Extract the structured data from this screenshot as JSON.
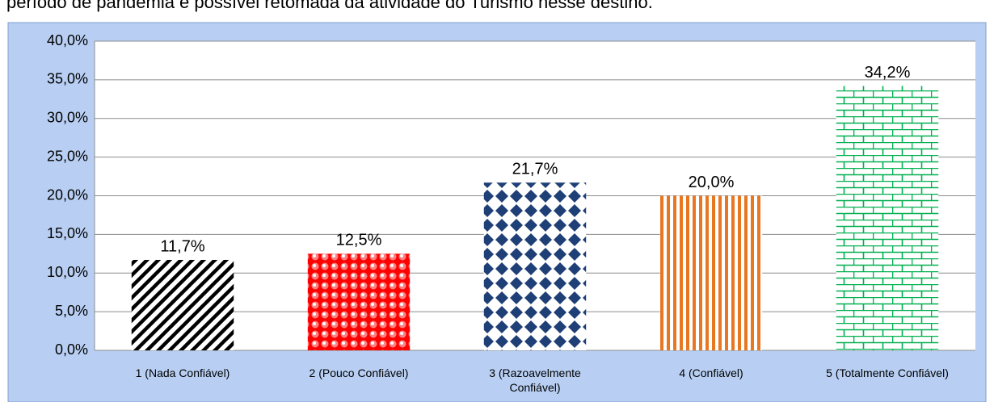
{
  "chart_data": {
    "type": "bar",
    "caption": "período de pandemia e possível retomada da atividade do Turismo nesse destino.",
    "categories": [
      "1 (Nada Confiável)",
      "2 (Pouco Confiável)",
      "3 (Razoavelmente Confiável)",
      "4 (Confiável)",
      "5 (Totalmente Confiável)"
    ],
    "values": [
      11.7,
      12.5,
      21.7,
      20.0,
      34.2
    ],
    "value_labels": [
      "11,7%",
      "12,5%",
      "21,7%",
      "20,0%",
      "34,2%"
    ],
    "colors": [
      "#000000",
      "#ff0000",
      "#1f3f77",
      "#e87722",
      "#00b050"
    ],
    "ylim": [
      0,
      40
    ],
    "yticks": [
      {
        "value": 0,
        "label": "0,0%"
      },
      {
        "value": 5,
        "label": "5,0%"
      },
      {
        "value": 10,
        "label": "10,0%"
      },
      {
        "value": 15,
        "label": "15,0%"
      },
      {
        "value": 20,
        "label": "20,0%"
      },
      {
        "value": 25,
        "label": "25,0%"
      },
      {
        "value": 30,
        "label": "30,0%"
      },
      {
        "value": 35,
        "label": "35,0%"
      },
      {
        "value": 40,
        "label": "40,0%"
      }
    ],
    "grid": true
  }
}
